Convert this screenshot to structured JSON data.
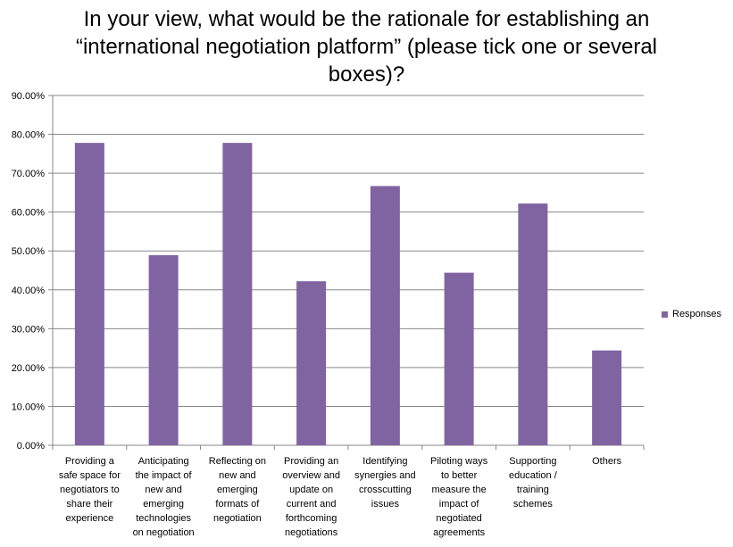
{
  "chart_data": {
    "type": "bar",
    "title_lines": [
      "In your view, what would be the rationale for establishing an",
      "“international negotiation platform” (please tick one or several",
      "boxes)?"
    ],
    "categories": [
      [
        "Providing a",
        "safe space for",
        "negotiators to",
        "share their",
        "experience"
      ],
      [
        "Anticipating",
        "the impact of",
        "new and",
        "emerging",
        "technologies",
        "on negotiation"
      ],
      [
        "Reflecting on",
        "new and",
        "emerging",
        "formats of",
        "negotiation"
      ],
      [
        "Providing an",
        "overview and",
        "update on",
        "current and",
        "forthcoming",
        "negotiations"
      ],
      [
        "Identifying",
        "synergies and",
        "crosscutting",
        "issues"
      ],
      [
        "Piloting ways",
        "to better",
        "measure the",
        "impact of",
        "negotiated",
        "agreements"
      ],
      [
        "Supporting",
        "education /",
        "training",
        "schemes"
      ],
      [
        "Others"
      ]
    ],
    "series": [
      {
        "name": "Responses",
        "color": "#8064a2",
        "values": [
          77.8,
          48.9,
          77.8,
          42.2,
          66.7,
          44.4,
          62.2,
          24.4
        ]
      }
    ],
    "ylim": [
      0,
      90
    ],
    "y_ticks": [
      "0.00%",
      "10.00%",
      "20.00%",
      "30.00%",
      "40.00%",
      "50.00%",
      "60.00%",
      "70.00%",
      "80.00%",
      "90.00%"
    ],
    "y_tick_values": [
      0,
      10,
      20,
      30,
      40,
      50,
      60,
      70,
      80,
      90
    ],
    "grid": true,
    "legend_position": "right",
    "xlabel": "",
    "ylabel": ""
  }
}
